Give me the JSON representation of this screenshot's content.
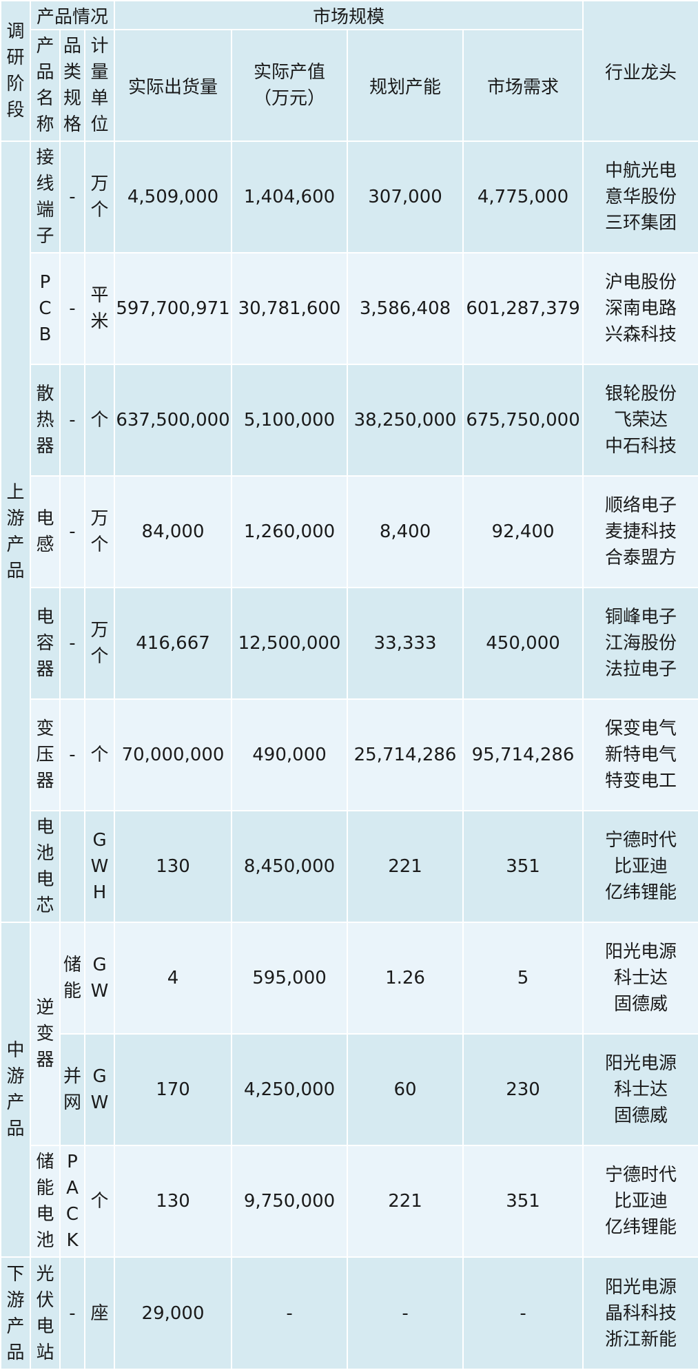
{
  "header": {
    "stage": "调\n研\n阶\n段",
    "product_info": "产品情况",
    "market_size": "市场规模",
    "product_name": "产\n品\n名\n称",
    "spec": "品\n类\n规\n格",
    "unit": "计\n量\n单\n位",
    "shipment": "实际出货量",
    "output_value": "实际产值\n（万元）",
    "planned_capacity": "规划产能",
    "demand": "市场需求",
    "leaders": "行业龙头"
  },
  "stages": {
    "upstream": "上\n游\n产\n品",
    "midstream": "中\n游\n产\n品",
    "downstream": "下\n游\n产\n品"
  },
  "rows": [
    {
      "name": "接\n线\n端\n子",
      "spec": "-",
      "unit": "万\n个",
      "shipment": "4,509,000",
      "value": "1,404,600",
      "capacity": "307,000",
      "demand": "4,775,000",
      "leaders": "中航光电\n意华股份\n三环集团"
    },
    {
      "name": "P\nC\nB",
      "spec": "-",
      "unit": "平\n米",
      "shipment": "597,700,971",
      "value": "30,781,600",
      "capacity": "3,586,408",
      "demand": "601,287,379",
      "leaders": "沪电股份\n深南电路\n兴森科技"
    },
    {
      "name": "散\n热\n器",
      "spec": "-",
      "unit": "个",
      "shipment": "637,500,000",
      "value": "5,100,000",
      "capacity": "38,250,000",
      "demand": "675,750,000",
      "leaders": "银轮股份\n飞荣达\n中石科技"
    },
    {
      "name": "电\n感",
      "spec": "-",
      "unit": "万\n个",
      "shipment": "84,000",
      "value": "1,260,000",
      "capacity": "8,400",
      "demand": "92,400",
      "leaders": "顺络电子\n麦捷科技\n合泰盟方"
    },
    {
      "name": "电\n容\n器",
      "spec": "-",
      "unit": "万\n个",
      "shipment": "416,667",
      "value": "12,500,000",
      "capacity": "33,333",
      "demand": "450,000",
      "leaders": "铜峰电子\n江海股份\n法拉电子"
    },
    {
      "name": "变\n压\n器",
      "spec": "-",
      "unit": "个",
      "shipment": "70,000,000",
      "value": "490,000",
      "capacity": "25,714,286",
      "demand": "95,714,286",
      "leaders": "保变电气\n新特电气\n特变电工"
    },
    {
      "name": "电\n池\n电\n芯",
      "spec": "",
      "unit": "G\nW\nH",
      "shipment": "130",
      "value": "8,450,000",
      "capacity": "221",
      "demand": "351",
      "leaders": "宁德时代\n比亚迪\n亿纬锂能"
    },
    {
      "name": "逆\n变\n器",
      "spec": "储\n能",
      "unit": "G\nW",
      "shipment": "4",
      "value": "595,000",
      "capacity": "1.26",
      "demand": "5",
      "leaders": "阳光电源\n科士达\n固德威"
    },
    {
      "name": "",
      "spec": "并\n网",
      "unit": "G\nW",
      "shipment": "170",
      "value": "4,250,000",
      "capacity": "60",
      "demand": "230",
      "leaders": "阳光电源\n科士达\n固德威"
    },
    {
      "name": "储\n能\n电\n池",
      "spec": "P\nA\nC\nK",
      "unit": "个",
      "shipment": "130",
      "value": "9,750,000",
      "capacity": "221",
      "demand": "351",
      "leaders": "宁德时代\n比亚迪\n亿纬锂能"
    },
    {
      "name": "光\n伏\n电\n站",
      "spec": "-",
      "unit": "座",
      "shipment": "29,000",
      "value": "-",
      "capacity": "-",
      "demand": "-",
      "leaders": "阳光电源\n晶科科技\n浙江新能"
    }
  ]
}
